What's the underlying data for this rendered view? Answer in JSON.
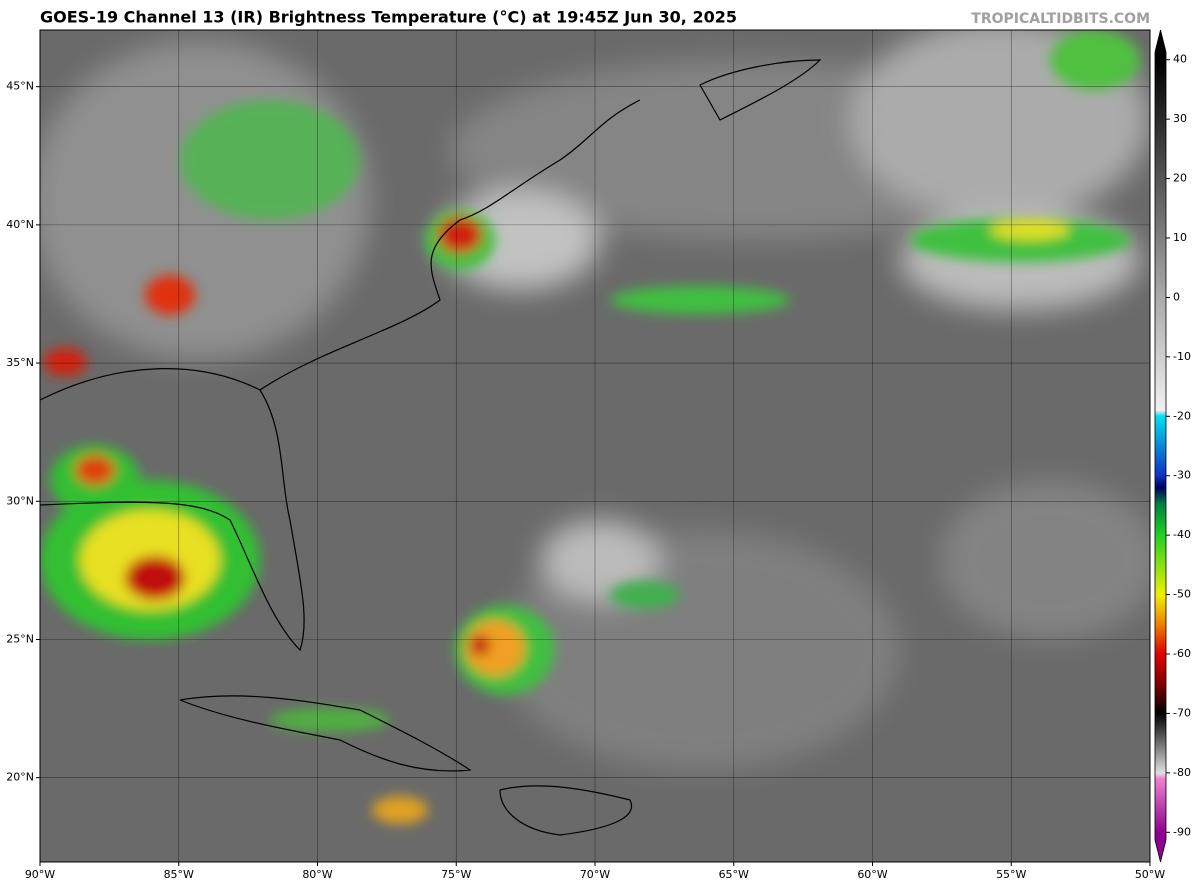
{
  "header": {
    "title": "GOES-19 Channel 13 (IR) Brightness Temperature (°C) at 19:45Z Jun 30, 2025",
    "source": "TROPICALTIDBITS.COM"
  },
  "map": {
    "xlim": [
      -90,
      -50
    ],
    "ylim": [
      16.95,
      47.05
    ],
    "xticks": [
      {
        "value": -90,
        "label": "90°W"
      },
      {
        "value": -85,
        "label": "85°W"
      },
      {
        "value": -80,
        "label": "80°W"
      },
      {
        "value": -75,
        "label": "75°W"
      },
      {
        "value": -70,
        "label": "70°W"
      },
      {
        "value": -65,
        "label": "65°W"
      },
      {
        "value": -60,
        "label": "60°W"
      },
      {
        "value": -55,
        "label": "55°W"
      },
      {
        "value": -50,
        "label": "50°W"
      }
    ],
    "yticks": [
      {
        "value": 20,
        "label": "20°N"
      },
      {
        "value": 25,
        "label": "25°N"
      },
      {
        "value": 30,
        "label": "30°N"
      },
      {
        "value": 35,
        "label": "35°N"
      },
      {
        "value": 40,
        "label": "40°N"
      },
      {
        "value": 45,
        "label": "45°N"
      }
    ]
  },
  "colorbar": {
    "lim": [
      -95,
      45
    ],
    "ticks": [
      40,
      30,
      20,
      10,
      0,
      -10,
      -20,
      -30,
      -40,
      -50,
      -60,
      -70,
      -80,
      -90
    ]
  }
}
